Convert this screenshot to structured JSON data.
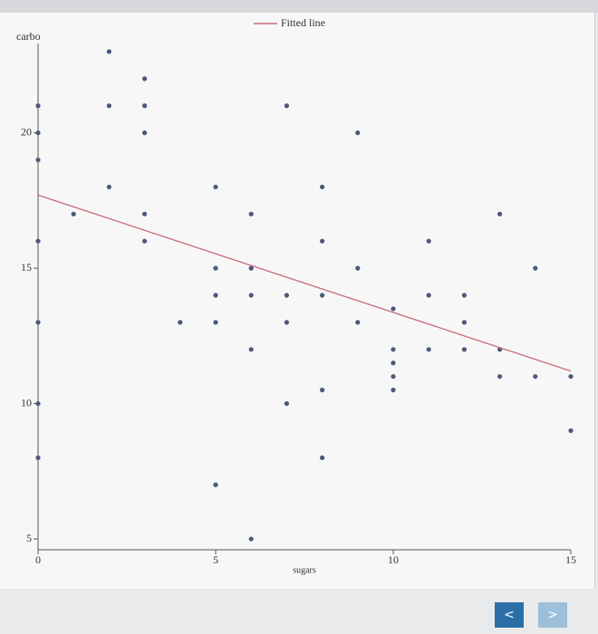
{
  "chart_data": {
    "type": "scatter",
    "x_label": "sugars",
    "y_label": "carbo",
    "x": [
      0,
      0,
      0,
      0,
      0,
      0,
      0,
      1,
      2,
      2,
      2,
      3,
      3,
      3,
      3,
      3,
      4,
      5,
      5,
      5,
      5,
      5,
      6,
      6,
      6,
      6,
      6,
      7,
      7,
      7,
      7,
      8,
      8,
      8,
      8,
      8,
      9,
      9,
      9,
      10,
      10,
      10,
      10,
      10,
      11,
      11,
      11,
      12,
      12,
      12,
      13,
      13,
      13,
      14,
      14,
      15,
      15
    ],
    "values": [
      21,
      20,
      19,
      16,
      13,
      10,
      8,
      17,
      23,
      21,
      18,
      22,
      21,
      20,
      17,
      16,
      13,
      18,
      15,
      14,
      13,
      7,
      17,
      15,
      14,
      12,
      5,
      21,
      14,
      13,
      10,
      18,
      16,
      14,
      10.5,
      8,
      20,
      15,
      13,
      13.5,
      12,
      11.5,
      11,
      10.5,
      16,
      14,
      12,
      14,
      13,
      12,
      17,
      12,
      11,
      15,
      11,
      11,
      9
    ],
    "color": "#4a5a78",
    "fitted_line": {
      "name": "Fitted line",
      "color": "#c86a78",
      "x": [
        0,
        15
      ],
      "values": [
        17.7,
        11.2
      ]
    },
    "xlim": [
      0,
      15
    ],
    "ylim": [
      4.6,
      23.3
    ],
    "xticks": [
      0,
      5,
      10,
      15
    ],
    "yticks": [
      5,
      10,
      15,
      20
    ]
  },
  "buttons": {
    "prev": "<",
    "next": ">"
  }
}
